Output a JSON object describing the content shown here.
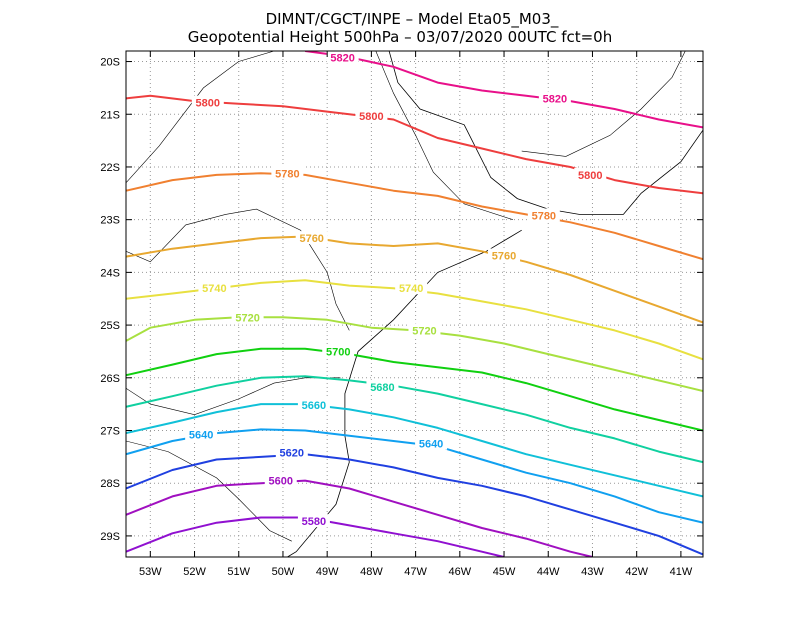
{
  "chart_data": {
    "type": "line",
    "title_line1": "DIMNT/CGCT/INPE  –   Model Eta05_M03_",
    "title_line2": "Geopotential Height 500hPa  –   03/07/2020 00UTC fct=0h",
    "xlabel": "",
    "ylabel": "",
    "xlim": [
      -53.55,
      -40.5
    ],
    "ylim": [
      -29.4,
      -19.8
    ],
    "x_ticks": [
      -53,
      -52,
      -51,
      -50,
      -49,
      -48,
      -47,
      -46,
      -45,
      -44,
      -43,
      -42,
      -41
    ],
    "x_tick_labels": [
      "53W",
      "52W",
      "51W",
      "50W",
      "49W",
      "48W",
      "47W",
      "46W",
      "45W",
      "44W",
      "43W",
      "42W",
      "41W"
    ],
    "y_ticks": [
      -20,
      -21,
      -22,
      -23,
      -24,
      -25,
      -26,
      -27,
      -28,
      -29
    ],
    "y_tick_labels": [
      "20S",
      "21S",
      "22S",
      "23S",
      "24S",
      "25S",
      "26S",
      "27S",
      "28S",
      "29S"
    ],
    "grid": true,
    "series": [
      {
        "name": "5820",
        "color": "#e8108a",
        "label_at": [
          [
            -48.65,
            -19.92
          ],
          [
            -43.85,
            -20.7
          ]
        ],
        "points": [
          [
            -49.5,
            -19.8
          ],
          [
            -48.6,
            -19.9
          ],
          [
            -47.5,
            -20.1
          ],
          [
            -46.5,
            -20.4
          ],
          [
            -45.5,
            -20.55
          ],
          [
            -44.5,
            -20.65
          ],
          [
            -43.5,
            -20.75
          ],
          [
            -42.5,
            -20.9
          ],
          [
            -41.5,
            -21.1
          ],
          [
            -40.5,
            -21.25
          ]
        ]
      },
      {
        "name": "5800",
        "color": "#ee3e3e",
        "label_at": [
          [
            -51.7,
            -20.78
          ],
          [
            -48.0,
            -21.03
          ],
          [
            -43.05,
            -22.15
          ]
        ],
        "points": [
          [
            -53.55,
            -20.7
          ],
          [
            -53.0,
            -20.65
          ],
          [
            -52.0,
            -20.75
          ],
          [
            -51.0,
            -20.8
          ],
          [
            -50.0,
            -20.85
          ],
          [
            -49.0,
            -20.95
          ],
          [
            -48.5,
            -21.0
          ],
          [
            -47.5,
            -21.1
          ],
          [
            -46.5,
            -21.45
          ],
          [
            -45.5,
            -21.65
          ],
          [
            -44.5,
            -21.85
          ],
          [
            -43.5,
            -22.0
          ],
          [
            -42.5,
            -22.25
          ],
          [
            -41.5,
            -22.4
          ],
          [
            -40.5,
            -22.5
          ]
        ]
      },
      {
        "name": "5780",
        "color": "#f08030",
        "label_at": [
          [
            -49.9,
            -22.12
          ],
          [
            -44.1,
            -22.92
          ]
        ],
        "points": [
          [
            -53.55,
            -22.45
          ],
          [
            -52.5,
            -22.25
          ],
          [
            -51.5,
            -22.15
          ],
          [
            -50.5,
            -22.12
          ],
          [
            -49.5,
            -22.15
          ],
          [
            -48.5,
            -22.3
          ],
          [
            -47.5,
            -22.45
          ],
          [
            -46.5,
            -22.55
          ],
          [
            -45.5,
            -22.75
          ],
          [
            -44.5,
            -22.9
          ],
          [
            -43.5,
            -23.05
          ],
          [
            -42.5,
            -23.25
          ],
          [
            -41.5,
            -23.5
          ],
          [
            -40.5,
            -23.75
          ]
        ]
      },
      {
        "name": "5760",
        "color": "#e8a830",
        "label_at": [
          [
            -49.35,
            -23.35
          ],
          [
            -45.0,
            -23.68
          ]
        ],
        "points": [
          [
            -53.55,
            -23.7
          ],
          [
            -52.5,
            -23.55
          ],
          [
            -51.5,
            -23.45
          ],
          [
            -50.5,
            -23.35
          ],
          [
            -49.5,
            -23.32
          ],
          [
            -48.5,
            -23.45
          ],
          [
            -47.5,
            -23.5
          ],
          [
            -46.5,
            -23.45
          ],
          [
            -45.5,
            -23.6
          ],
          [
            -44.5,
            -23.8
          ],
          [
            -43.5,
            -24.05
          ],
          [
            -42.5,
            -24.35
          ],
          [
            -41.5,
            -24.65
          ],
          [
            -40.5,
            -24.95
          ]
        ]
      },
      {
        "name": "5740",
        "color": "#e8e040",
        "label_at": [
          [
            -51.55,
            -24.3
          ],
          [
            -47.1,
            -24.3
          ]
        ],
        "points": [
          [
            -53.55,
            -24.5
          ],
          [
            -52.5,
            -24.4
          ],
          [
            -51.5,
            -24.3
          ],
          [
            -50.5,
            -24.2
          ],
          [
            -49.5,
            -24.15
          ],
          [
            -48.5,
            -24.25
          ],
          [
            -47.5,
            -24.3
          ],
          [
            -46.5,
            -24.4
          ],
          [
            -45.5,
            -24.55
          ],
          [
            -44.5,
            -24.7
          ],
          [
            -43.5,
            -24.9
          ],
          [
            -42.5,
            -25.1
          ],
          [
            -41.5,
            -25.35
          ],
          [
            -40.5,
            -25.65
          ]
        ]
      },
      {
        "name": "5720",
        "color": "#a8e040",
        "label_at": [
          [
            -50.8,
            -24.86
          ],
          [
            -46.8,
            -25.1
          ]
        ],
        "points": [
          [
            -53.55,
            -25.3
          ],
          [
            -53.0,
            -25.05
          ],
          [
            -52.0,
            -24.9
          ],
          [
            -51.0,
            -24.85
          ],
          [
            -50.0,
            -24.85
          ],
          [
            -49.0,
            -24.9
          ],
          [
            -48.0,
            -25.05
          ],
          [
            -47.0,
            -25.1
          ],
          [
            -46.0,
            -25.2
          ],
          [
            -45.0,
            -25.35
          ],
          [
            -44.0,
            -25.55
          ],
          [
            -43.0,
            -25.75
          ],
          [
            -42.0,
            -25.95
          ],
          [
            -41.0,
            -26.15
          ],
          [
            -40.5,
            -26.25
          ]
        ]
      },
      {
        "name": "5700",
        "color": "#10d010",
        "label_at": [
          [
            -48.75,
            -25.5
          ]
        ],
        "points": [
          [
            -53.55,
            -25.95
          ],
          [
            -52.5,
            -25.75
          ],
          [
            -51.5,
            -25.55
          ],
          [
            -50.5,
            -25.45
          ],
          [
            -49.5,
            -25.45
          ],
          [
            -48.5,
            -25.55
          ],
          [
            -47.5,
            -25.7
          ],
          [
            -46.5,
            -25.8
          ],
          [
            -45.5,
            -25.9
          ],
          [
            -44.5,
            -26.1
          ],
          [
            -43.5,
            -26.35
          ],
          [
            -42.5,
            -26.6
          ],
          [
            -41.5,
            -26.8
          ],
          [
            -40.5,
            -27.0
          ]
        ]
      },
      {
        "name": "5680",
        "color": "#10d0a0",
        "label_at": [
          [
            -47.75,
            -26.17
          ]
        ],
        "points": [
          [
            -53.55,
            -26.55
          ],
          [
            -52.5,
            -26.35
          ],
          [
            -51.5,
            -26.15
          ],
          [
            -50.5,
            -26.0
          ],
          [
            -49.5,
            -25.97
          ],
          [
            -48.5,
            -26.05
          ],
          [
            -47.5,
            -26.15
          ],
          [
            -46.5,
            -26.3
          ],
          [
            -45.5,
            -26.5
          ],
          [
            -44.5,
            -26.7
          ],
          [
            -43.5,
            -26.95
          ],
          [
            -42.5,
            -27.15
          ],
          [
            -41.5,
            -27.4
          ],
          [
            -40.5,
            -27.6
          ]
        ]
      },
      {
        "name": "5660",
        "color": "#10c0d8",
        "label_at": [
          [
            -49.3,
            -26.52
          ]
        ],
        "points": [
          [
            -53.55,
            -27.05
          ],
          [
            -52.5,
            -26.85
          ],
          [
            -51.5,
            -26.65
          ],
          [
            -50.5,
            -26.5
          ],
          [
            -49.5,
            -26.5
          ],
          [
            -48.5,
            -26.6
          ],
          [
            -47.5,
            -26.75
          ],
          [
            -46.5,
            -26.95
          ],
          [
            -45.5,
            -27.2
          ],
          [
            -44.5,
            -27.45
          ],
          [
            -43.5,
            -27.65
          ],
          [
            -42.5,
            -27.85
          ],
          [
            -41.5,
            -28.05
          ],
          [
            -40.5,
            -28.25
          ]
        ]
      },
      {
        "name": "5640",
        "color": "#10a0f0",
        "label_at": [
          [
            -51.85,
            -27.08
          ],
          [
            -46.65,
            -27.25
          ]
        ],
        "points": [
          [
            -53.55,
            -27.45
          ],
          [
            -52.5,
            -27.2
          ],
          [
            -51.5,
            -27.05
          ],
          [
            -50.5,
            -26.98
          ],
          [
            -49.5,
            -27.0
          ],
          [
            -48.5,
            -27.1
          ],
          [
            -47.5,
            -27.2
          ],
          [
            -46.5,
            -27.3
          ],
          [
            -45.5,
            -27.55
          ],
          [
            -44.5,
            -27.8
          ],
          [
            -43.5,
            -28.0
          ],
          [
            -42.5,
            -28.25
          ],
          [
            -41.5,
            -28.55
          ],
          [
            -40.5,
            -28.75
          ]
        ]
      },
      {
        "name": "5620",
        "color": "#2040e0",
        "label_at": [
          [
            -49.8,
            -27.42
          ]
        ],
        "points": [
          [
            -53.55,
            -28.1
          ],
          [
            -52.5,
            -27.75
          ],
          [
            -51.5,
            -27.55
          ],
          [
            -50.5,
            -27.5
          ],
          [
            -49.5,
            -27.45
          ],
          [
            -48.5,
            -27.55
          ],
          [
            -47.5,
            -27.7
          ],
          [
            -46.5,
            -27.9
          ],
          [
            -45.5,
            -28.05
          ],
          [
            -44.5,
            -28.25
          ],
          [
            -43.5,
            -28.5
          ],
          [
            -42.5,
            -28.75
          ],
          [
            -41.5,
            -29.0
          ],
          [
            -40.5,
            -29.35
          ]
        ]
      },
      {
        "name": "5600",
        "color": "#a010c0",
        "label_at": [
          [
            -50.05,
            -27.95
          ]
        ],
        "points": [
          [
            -53.55,
            -28.6
          ],
          [
            -52.5,
            -28.25
          ],
          [
            -51.5,
            -28.05
          ],
          [
            -50.5,
            -28.0
          ],
          [
            -49.5,
            -27.95
          ],
          [
            -48.5,
            -28.1
          ],
          [
            -47.5,
            -28.35
          ],
          [
            -46.5,
            -28.6
          ],
          [
            -45.5,
            -28.85
          ],
          [
            -44.5,
            -29.05
          ],
          [
            -43.5,
            -29.3
          ],
          [
            -43.0,
            -29.4
          ]
        ]
      },
      {
        "name": "5580",
        "color": "#9010d0",
        "label_at": [
          [
            -49.3,
            -28.72
          ]
        ],
        "points": [
          [
            -53.55,
            -29.3
          ],
          [
            -52.5,
            -28.95
          ],
          [
            -51.5,
            -28.75
          ],
          [
            -50.5,
            -28.65
          ],
          [
            -49.5,
            -28.65
          ],
          [
            -48.5,
            -28.8
          ],
          [
            -47.5,
            -28.95
          ],
          [
            -46.5,
            -29.1
          ],
          [
            -45.5,
            -29.3
          ],
          [
            -45.0,
            -29.4
          ]
        ]
      }
    ],
    "coastline": [
      [
        -47.6,
        -19.8
      ],
      [
        -47.4,
        -20.4
      ],
      [
        -46.9,
        -20.9
      ],
      [
        -45.9,
        -21.2
      ],
      [
        -45.3,
        -22.2
      ],
      [
        -44.7,
        -22.6
      ],
      [
        -44.0,
        -22.8
      ],
      [
        -43.3,
        -22.9
      ],
      [
        -42.3,
        -22.9
      ],
      [
        -41.9,
        -22.5
      ],
      [
        -41.0,
        -21.9
      ],
      [
        -40.5,
        -21.3
      ]
    ],
    "coastline_south": [
      [
        -44.6,
        -23.2
      ],
      [
        -45.4,
        -23.6
      ],
      [
        -46.5,
        -24.0
      ],
      [
        -47.5,
        -24.9
      ],
      [
        -48.3,
        -25.5
      ],
      [
        -48.6,
        -26.3
      ],
      [
        -48.6,
        -27.1
      ],
      [
        -48.5,
        -27.6
      ],
      [
        -48.8,
        -28.4
      ],
      [
        -49.7,
        -29.3
      ],
      [
        -49.9,
        -29.4
      ]
    ],
    "borders": [
      [
        [
          -53.55,
          -23.6
        ],
        [
          -53.0,
          -23.8
        ],
        [
          -52.2,
          -23.1
        ],
        [
          -51.3,
          -22.9
        ],
        [
          -50.6,
          -22.8
        ],
        [
          -49.6,
          -23.2
        ],
        [
          -49.3,
          -23.6
        ],
        [
          -49.0,
          -24.0
        ],
        [
          -48.8,
          -24.6
        ],
        [
          -48.5,
          -25.1
        ]
      ],
      [
        [
          -53.55,
          -26.2
        ],
        [
          -53.0,
          -26.5
        ],
        [
          -52.0,
          -26.7
        ],
        [
          -51.0,
          -26.4
        ],
        [
          -50.2,
          -26.1
        ],
        [
          -49.5,
          -26.0
        ],
        [
          -48.7,
          -26.0
        ]
      ],
      [
        [
          -53.55,
          -27.2
        ],
        [
          -52.6,
          -27.4
        ],
        [
          -51.5,
          -27.9
        ],
        [
          -51.0,
          -28.3
        ],
        [
          -50.3,
          -28.9
        ],
        [
          -49.8,
          -29.1
        ]
      ],
      [
        [
          -53.55,
          -22.3
        ],
        [
          -52.8,
          -21.6
        ],
        [
          -51.8,
          -20.5
        ],
        [
          -51.0,
          -20.0
        ],
        [
          -50.2,
          -19.8
        ]
      ],
      [
        [
          -47.9,
          -19.8
        ],
        [
          -47.5,
          -20.6
        ],
        [
          -47.0,
          -21.4
        ],
        [
          -46.6,
          -22.1
        ],
        [
          -45.9,
          -22.7
        ],
        [
          -44.8,
          -23.0
        ]
      ],
      [
        [
          -44.6,
          -21.7
        ],
        [
          -43.6,
          -21.8
        ],
        [
          -42.6,
          -21.4
        ],
        [
          -41.9,
          -20.9
        ],
        [
          -41.2,
          -20.3
        ],
        [
          -40.9,
          -19.8
        ]
      ]
    ]
  }
}
